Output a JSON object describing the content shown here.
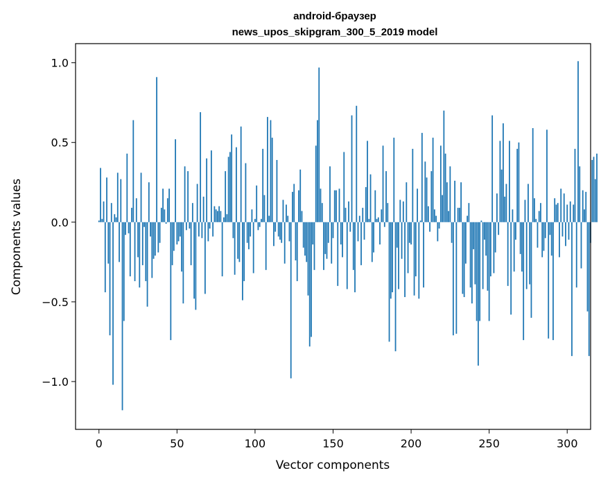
{
  "chart_data": {
    "type": "bar",
    "title": [
      "android-браузер",
      "news_upos_skipgram_300_5_2019 model"
    ],
    "xlabel": "Vector components",
    "ylabel": "Components values",
    "xlim": [
      -15,
      315
    ],
    "ylim": [
      -1.3,
      1.12
    ],
    "xticks": [
      0,
      50,
      100,
      150,
      200,
      250,
      300
    ],
    "xtick_labels": [
      "0",
      "50",
      "100",
      "150",
      "200",
      "250",
      "300"
    ],
    "yticks": [
      -1.0,
      -0.5,
      0.0,
      0.5,
      1.0
    ],
    "ytick_labels": [
      "−1.0",
      "−0.5",
      "0.0",
      "0.5",
      "1.0"
    ],
    "bar_color": "#1f77b4",
    "grid": false,
    "legend": "none",
    "series": [
      {
        "x_start": 0,
        "values": [
          0.01,
          0.34,
          0.02,
          0.13,
          -0.44,
          0.28,
          -0.26,
          -0.71,
          0.12,
          -1.02,
          0.05,
          0.03,
          0.31,
          -0.25,
          0.27,
          -1.18,
          -0.62,
          -0.08,
          0.43,
          -0.07,
          -0.34,
          0.09,
          0.64,
          -0.37,
          0.15,
          -0.22,
          -0.41,
          0.31,
          -0.27,
          -0.03,
          -0.37,
          -0.53,
          0.25,
          -0.09,
          -0.35,
          -0.23,
          -0.21,
          0.91,
          -0.19,
          -0.13,
          0.09,
          0.21,
          0.08,
          -0.01,
          0.15,
          0.21,
          -0.74,
          -0.27,
          -0.18,
          0.52,
          -0.14,
          -0.12,
          -0.09,
          -0.31,
          -0.51,
          0.35,
          -0.05,
          0.32,
          -0.04,
          -0.27,
          0.12,
          -0.48,
          -0.55,
          0.24,
          -0.09,
          0.69,
          -0.1,
          0.16,
          -0.45,
          0.4,
          -0.12,
          -0.04,
          0.45,
          -0.09,
          0.1,
          0.08,
          0.07,
          0.1,
          0.07,
          -0.34,
          0.03,
          0.32,
          0.05,
          0.41,
          0.44,
          0.55,
          -0.1,
          -0.33,
          0.47,
          -0.23,
          -0.25,
          0.6,
          -0.49,
          -0.37,
          0.37,
          -0.13,
          -0.17,
          -0.09,
          0.08,
          -0.32,
          0.02,
          0.23,
          -0.05,
          -0.03,
          0.02,
          0.46,
          0.17,
          -0.3,
          0.66,
          0.04,
          0.64,
          0.53,
          -0.15,
          -0.06,
          0.39,
          -0.09,
          -0.11,
          -0.13,
          0.14,
          -0.26,
          0.11,
          0.04,
          -0.12,
          -0.98,
          0.19,
          0.24,
          -0.24,
          -0.37,
          0.2,
          0.33,
          0.07,
          -0.16,
          -0.21,
          -0.25,
          -0.46,
          -0.78,
          -0.72,
          -0.14,
          -0.3,
          0.48,
          0.64,
          0.97,
          0.21,
          0.12,
          -0.3,
          -0.2,
          -0.23,
          -0.13,
          0.35,
          -0.26,
          -0.1,
          0.2,
          0.2,
          -0.4,
          0.21,
          -0.14,
          -0.22,
          0.44,
          0.09,
          -0.42,
          0.13,
          -0.06,
          0.67,
          -0.3,
          -0.44,
          0.73,
          -0.12,
          0.04,
          -0.27,
          0.09,
          -0.11,
          0.22,
          0.51,
          0.02,
          0.3,
          -0.25,
          -0.19,
          0.2,
          0.02,
          0.03,
          -0.14,
          0.08,
          0.48,
          -0.03,
          0.32,
          0.12,
          -0.75,
          -0.48,
          -0.44,
          0.53,
          -0.81,
          -0.16,
          -0.42,
          0.14,
          -0.23,
          0.13,
          -0.47,
          0.25,
          -0.32,
          -0.13,
          -0.14,
          0.46,
          -0.46,
          -0.34,
          0.21,
          -0.48,
          0.01,
          0.56,
          -0.41,
          0.38,
          0.28,
          0.1,
          -0.06,
          0.32,
          0.53,
          0.08,
          0.04,
          -0.12,
          -0.04,
          0.48,
          0.17,
          0.7,
          0.43,
          0.25,
          0.07,
          0.35,
          -0.13,
          -0.71,
          0.26,
          -0.7,
          0.09,
          0.09,
          0.25,
          -0.45,
          -0.47,
          -0.26,
          0.04,
          0.12,
          -0.41,
          -0.51,
          -0.17,
          -0.39,
          -0.62,
          -0.9,
          -0.62,
          0.01,
          -0.42,
          -0.11,
          -0.21,
          -0.43,
          -0.62,
          -0.34,
          0.67,
          -0.32,
          -0.19,
          0.18,
          -0.08,
          0.51,
          0.33,
          0.62,
          0.16,
          0.24,
          -0.4,
          0.51,
          -0.58,
          0.08,
          -0.31,
          -0.11,
          0.46,
          0.5,
          -0.2,
          -0.31,
          -0.74,
          0.14,
          -0.42,
          0.24,
          -0.39,
          -0.6,
          0.59,
          0.15,
          0.02,
          -0.16,
          0.07,
          0.12,
          -0.22,
          -0.18,
          -0.1,
          0.58,
          -0.73,
          -0.08,
          -0.21,
          -0.74,
          0.15,
          0.11,
          0.12,
          -0.22,
          0.21,
          -0.09,
          0.18,
          -0.15,
          0.11,
          -0.11,
          0.13,
          -0.84,
          0.11,
          0.46,
          -0.41,
          1.01,
          0.35,
          -0.29,
          0.2,
          0.08,
          0.19,
          -0.56,
          -0.84,
          -0.13,
          0.39,
          0.41,
          0.27,
          0.43
        ]
      }
    ]
  }
}
